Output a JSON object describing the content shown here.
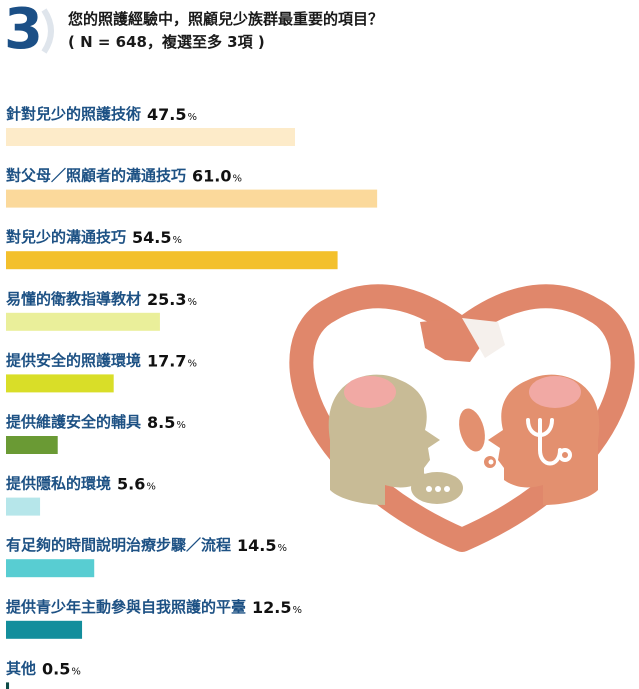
{
  "header": {
    "number": "3",
    "question": "您的照護經驗中，照顧兒少族群最重要的項目？",
    "sample_note": "( N = 648，複選至多 3項 )"
  },
  "chart_data": {
    "type": "bar",
    "orientation": "horizontal",
    "title": "",
    "value_unit": "%",
    "xlim": [
      0,
      100
    ],
    "categories": [
      "針對兒少的照護技術",
      "對父母／照顧者的溝通技巧",
      "對兒少的溝通技巧",
      "易懂的衛教指導教材",
      "提供安全的照護環境",
      "提供維護安全的輔具",
      "提供隱私的環境",
      "有足夠的時間說明治療步驟／流程",
      "提供青少年主動參與自我照護的平臺",
      "其他"
    ],
    "values": [
      47.5,
      61.0,
      54.5,
      25.3,
      17.7,
      8.5,
      5.6,
      14.5,
      12.5,
      0.5
    ],
    "value_labels": [
      "47.5",
      "61.0",
      "54.5",
      "25.3",
      "17.7",
      "8.5",
      "5.6",
      "14.5",
      "12.5",
      "0.5"
    ],
    "colors": [
      "#fdebc9",
      "#fbd99b",
      "#f3c02c",
      "#eaef9a",
      "#d9de28",
      "#6a9a34",
      "#b6e6ea",
      "#58cdd2",
      "#138e9c",
      "#0e4b47"
    ],
    "grid": false,
    "legend": "none"
  },
  "illustration": {
    "heart_color": "#e0876b",
    "head_left_color": "#c8bb96",
    "head_right_color": "#e3906f",
    "brain_color": "#f1a9a4",
    "bubble_color": "#c8bb96",
    "icons": [
      "heart-frame-icon",
      "handshake-icon",
      "head-profile-icon",
      "brain-icon",
      "stethoscope-icon",
      "speech-bubble-icon"
    ]
  }
}
